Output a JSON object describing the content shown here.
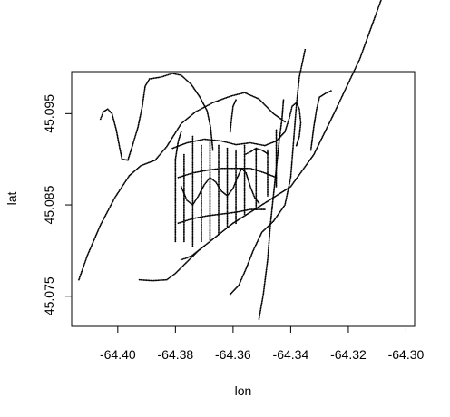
{
  "chart_data": {
    "type": "scatter",
    "title": "",
    "xlabel": "lon",
    "ylabel": "lat",
    "xlim": [
      -64.416,
      -64.297
    ],
    "ylim": [
      45.0717,
      45.0996
    ],
    "x_ticks": [
      -64.4,
      -64.38,
      -64.36,
      -64.34,
      -64.32,
      -64.3
    ],
    "x_tick_labels": [
      "-64.40",
      "-64.38",
      "-64.36",
      "-64.34",
      "-64.32",
      "-64.30"
    ],
    "y_ticks": [
      45.075,
      45.085,
      45.095
    ],
    "y_tick_labels": [
      "45.075",
      "45.085",
      "45.095"
    ],
    "grid": false,
    "legend": "none",
    "point_color": "#000000",
    "tracks": [
      {
        "points": [
          [
            -64.4135,
            45.0768
          ],
          [
            -64.4105,
            45.0795
          ],
          [
            -64.406,
            45.0828
          ],
          [
            -64.401,
            45.0858
          ],
          [
            -64.396,
            45.0882
          ],
          [
            -64.392,
            45.0893
          ],
          [
            -64.387,
            45.0899
          ],
          [
            -64.383,
            45.0914
          ],
          [
            -64.378,
            45.0939
          ],
          [
            -64.373,
            45.0952
          ],
          [
            -64.367,
            45.0962
          ],
          [
            -64.361,
            45.0969
          ],
          [
            -64.356,
            45.0973
          ],
          [
            -64.351,
            45.0966
          ],
          [
            -64.346,
            45.095
          ],
          [
            -64.342,
            45.0941
          ]
        ]
      },
      {
        "points": [
          [
            -64.406,
            45.0944
          ],
          [
            -64.405,
            45.0952
          ],
          [
            -64.4035,
            45.0955
          ],
          [
            -64.402,
            45.095
          ],
          [
            -64.4005,
            45.0932
          ],
          [
            -64.3993,
            45.0912
          ],
          [
            -64.3985,
            45.09
          ],
          [
            -64.3965,
            45.0899
          ],
          [
            -64.395,
            45.0914
          ],
          [
            -64.393,
            45.0935
          ],
          [
            -64.3915,
            45.0958
          ],
          [
            -64.3905,
            45.098
          ],
          [
            -64.389,
            45.0988
          ],
          [
            -64.385,
            45.099
          ],
          [
            -64.381,
            45.0994
          ],
          [
            -64.378,
            45.0992
          ],
          [
            -64.3745,
            45.0982
          ],
          [
            -64.3715,
            45.0968
          ],
          [
            -64.369,
            45.0953
          ],
          [
            -64.3678,
            45.0935
          ],
          [
            -64.367,
            45.091
          ]
        ]
      },
      {
        "points": [
          [
            -64.3925,
            45.0768
          ],
          [
            -64.388,
            45.0767
          ],
          [
            -64.383,
            45.0768
          ],
          [
            -64.38,
            45.0775
          ],
          [
            -64.372,
            45.08
          ],
          [
            -64.36,
            45.083
          ],
          [
            -64.35,
            45.085
          ],
          [
            -64.34,
            45.087
          ],
          [
            -64.332,
            45.0905
          ],
          [
            -64.325,
            45.095
          ],
          [
            -64.316,
            45.101
          ],
          [
            -64.304,
            45.1115
          ]
        ]
      },
      {
        "points": [
          [
            -64.361,
            45.0752
          ],
          [
            -64.358,
            45.0762
          ],
          [
            -64.3555,
            45.078
          ],
          [
            -64.353,
            45.08
          ],
          [
            -64.35,
            45.082
          ],
          [
            -64.346,
            45.0832
          ],
          [
            -64.342,
            45.085
          ],
          [
            -64.34,
            45.088
          ],
          [
            -64.339,
            45.092
          ],
          [
            -64.338,
            45.096
          ],
          [
            -64.337,
            45.099
          ],
          [
            -64.335,
            45.102
          ]
        ]
      },
      {
        "points": [
          [
            -64.351,
            45.0725
          ],
          [
            -64.3495,
            45.0752
          ],
          [
            -64.348,
            45.079
          ],
          [
            -64.347,
            45.083
          ],
          [
            -64.346,
            45.086
          ],
          [
            -64.345,
            45.089
          ],
          [
            -64.344,
            45.092
          ],
          [
            -64.343,
            45.0945
          ],
          [
            -64.3425,
            45.0965
          ]
        ]
      },
      {
        "points": [
          [
            -64.38,
            45.081
          ],
          [
            -64.38,
            45.084
          ],
          [
            -64.38,
            45.087
          ],
          [
            -64.38,
            45.09
          ],
          [
            -64.379,
            45.092
          ],
          [
            -64.378,
            45.093
          ]
        ]
      },
      {
        "points": [
          [
            -64.377,
            45.081
          ],
          [
            -64.377,
            45.084
          ],
          [
            -64.377,
            45.087
          ],
          [
            -64.377,
            45.0905
          ]
        ]
      },
      {
        "points": [
          [
            -64.374,
            45.0805
          ],
          [
            -64.374,
            45.084
          ],
          [
            -64.374,
            45.088
          ],
          [
            -64.374,
            45.0925
          ]
        ]
      },
      {
        "points": [
          [
            -64.371,
            45.081
          ],
          [
            -64.371,
            45.0845
          ],
          [
            -64.371,
            45.088
          ],
          [
            -64.371,
            45.0915
          ]
        ]
      },
      {
        "points": [
          [
            -64.368,
            45.0812
          ],
          [
            -64.368,
            45.085
          ],
          [
            -64.368,
            45.089
          ],
          [
            -64.368,
            45.092
          ]
        ]
      },
      {
        "points": [
          [
            -64.365,
            45.0818
          ],
          [
            -64.365,
            45.085
          ],
          [
            -64.365,
            45.0885
          ],
          [
            -64.365,
            45.0915
          ]
        ]
      },
      {
        "points": [
          [
            -64.362,
            45.0825
          ],
          [
            -64.362,
            45.086
          ],
          [
            -64.362,
            45.089
          ],
          [
            -64.362,
            45.0912
          ]
        ]
      },
      {
        "points": [
          [
            -64.359,
            45.083
          ],
          [
            -64.359,
            45.086
          ],
          [
            -64.359,
            45.089
          ],
          [
            -64.359,
            45.091
          ]
        ]
      },
      {
        "points": [
          [
            -64.356,
            45.084
          ],
          [
            -64.356,
            45.087
          ],
          [
            -64.356,
            45.09
          ],
          [
            -64.356,
            45.0915
          ]
        ]
      },
      {
        "points": [
          [
            -64.352,
            45.0845
          ],
          [
            -64.352,
            45.0875
          ],
          [
            -64.352,
            45.09
          ],
          [
            -64.352,
            45.0912
          ]
        ]
      },
      {
        "points": [
          [
            -64.348,
            45.086
          ],
          [
            -64.348,
            45.0885
          ],
          [
            -64.348,
            45.091
          ]
        ]
      },
      {
        "points": [
          [
            -64.345,
            45.087
          ],
          [
            -64.345,
            45.0895
          ],
          [
            -64.345,
            45.0915
          ],
          [
            -64.345,
            45.0932
          ]
        ]
      },
      {
        "points": [
          [
            -64.381,
            45.0912
          ],
          [
            -64.376,
            45.0918
          ],
          [
            -64.37,
            45.0922
          ],
          [
            -64.364,
            45.092
          ],
          [
            -64.359,
            45.0916
          ],
          [
            -64.354,
            45.0918
          ],
          [
            -64.349,
            45.0915
          ],
          [
            -64.345,
            45.092
          ],
          [
            -64.342,
            45.093
          ],
          [
            -64.3405,
            45.0945
          ],
          [
            -64.3395,
            45.0958
          ],
          [
            -64.338,
            45.0962
          ],
          [
            -64.337,
            45.0955
          ],
          [
            -64.3365,
            45.094
          ],
          [
            -64.337,
            45.0925
          ],
          [
            -64.338,
            45.0915
          ]
        ]
      },
      {
        "points": [
          [
            -64.379,
            45.088
          ],
          [
            -64.374,
            45.0885
          ],
          [
            -64.369,
            45.0888
          ],
          [
            -64.364,
            45.089
          ],
          [
            -64.359,
            45.089
          ],
          [
            -64.354,
            45.089
          ],
          [
            -64.349,
            45.0885
          ],
          [
            -64.345,
            45.088
          ]
        ]
      },
      {
        "points": [
          [
            -64.379,
            45.083
          ],
          [
            -64.374,
            45.0835
          ],
          [
            -64.369,
            45.0838
          ],
          [
            -64.364,
            45.084
          ],
          [
            -64.359,
            45.0842
          ],
          [
            -64.354,
            45.0845
          ],
          [
            -64.349,
            45.0845
          ]
        ]
      },
      {
        "points": [
          [
            -64.378,
            45.087
          ],
          [
            -64.376,
            45.0855
          ],
          [
            -64.374,
            45.085
          ],
          [
            -64.372,
            45.086
          ],
          [
            -64.37,
            45.0872
          ],
          [
            -64.368,
            45.088
          ],
          [
            -64.366,
            45.0875
          ],
          [
            -64.364,
            45.0865
          ],
          [
            -64.362,
            45.086
          ],
          [
            -64.36,
            45.0868
          ],
          [
            -64.3585,
            45.088
          ],
          [
            -64.357,
            45.089
          ],
          [
            -64.3555,
            45.0885
          ],
          [
            -64.354,
            45.087
          ],
          [
            -64.3525,
            45.0858
          ],
          [
            -64.351,
            45.0852
          ]
        ]
      },
      {
        "points": [
          [
            -64.333,
            45.091
          ],
          [
            -64.332,
            45.0935
          ],
          [
            -64.331,
            45.0955
          ],
          [
            -64.33,
            45.0968
          ],
          [
            -64.328,
            45.0972
          ],
          [
            -64.326,
            45.0975
          ]
        ]
      },
      {
        "points": [
          [
            -64.378,
            45.079
          ],
          [
            -64.376,
            45.0792
          ],
          [
            -64.374,
            45.0795
          ],
          [
            -64.372,
            45.08
          ],
          [
            -64.37,
            45.0805
          ]
        ]
      },
      {
        "points": [
          [
            -64.361,
            45.093
          ],
          [
            -64.3605,
            45.0945
          ],
          [
            -64.36,
            45.0958
          ],
          [
            -64.359,
            45.0965
          ]
        ]
      },
      {
        "points": [
          [
            -64.356,
            45.0905
          ],
          [
            -64.354,
            45.0908
          ],
          [
            -64.352,
            45.0912
          ],
          [
            -64.35,
            45.091
          ],
          [
            -64.348,
            45.0906
          ]
        ]
      }
    ]
  }
}
